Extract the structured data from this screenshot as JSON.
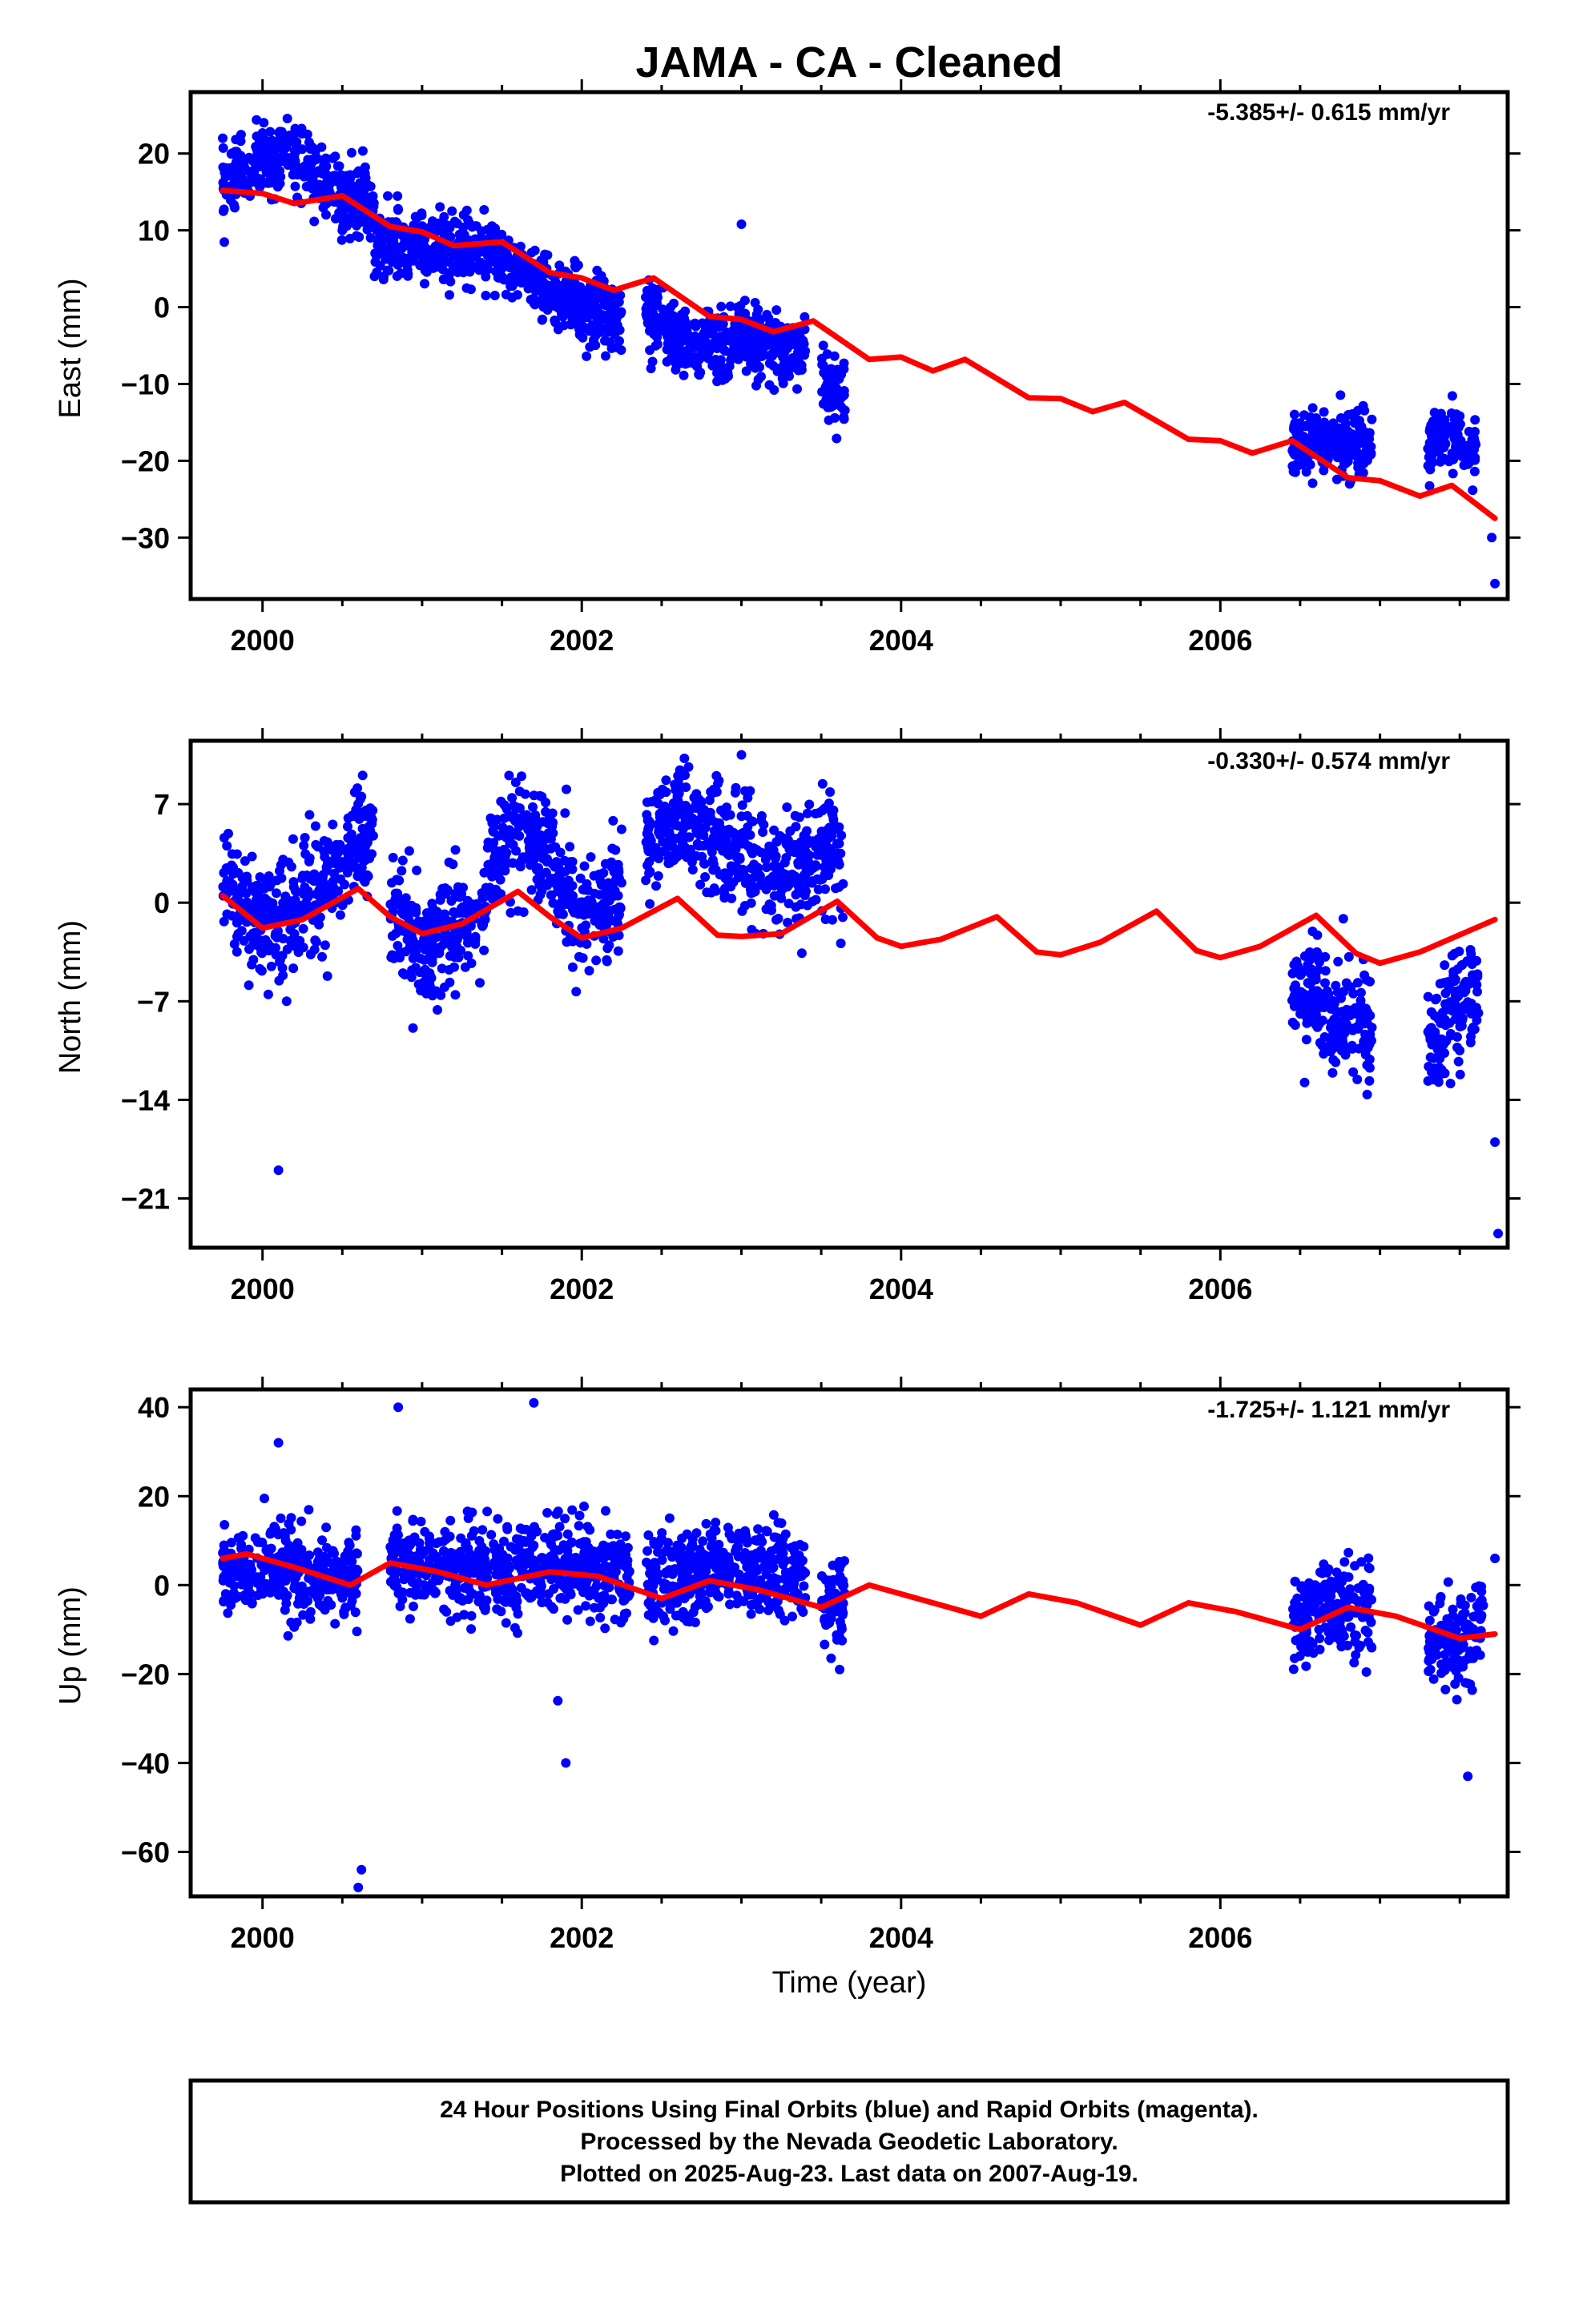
{
  "title": "JAMA  - CA - Cleaned",
  "colors": {
    "dots": "#0000ff",
    "model": "#ff0000"
  },
  "footer": {
    "lines": [
      "24 Hour Positions Using Final Orbits (blue) and Rapid Orbits (magenta).",
      "Processed by the Nevada Geodetic Laboratory.",
      "Plotted on 2025-Aug-23. Last data on 2007-Aug-19."
    ]
  },
  "chart_data": [
    {
      "type": "scatter",
      "ylabel": "East (mm)",
      "xlabel": "",
      "rate_label": "-5.385+/- 0.615 mm/yr",
      "xlim": [
        1999.55,
        2007.8
      ],
      "ylim": [
        -38,
        28
      ],
      "xticks": [
        2000,
        2002,
        2004,
        2006
      ],
      "yticks": [
        20,
        10,
        0,
        -10,
        -20,
        -30
      ],
      "ytick_labels": [
        "20",
        "10",
        "0",
        "−10",
        "−20",
        "−30"
      ],
      "series": [
        {
          "kind": "dots",
          "segments": [
            {
              "start": 1999.75,
              "end": 2000.7,
              "points": [
                [
                  1999.75,
                  16
                ],
                [
                  2000.0,
                  19
                ],
                [
                  2000.2,
                  20
                ],
                [
                  2000.5,
                  14
                ]
              ]
            },
            {
              "start": 2000.7,
              "end": 2001.5,
              "points": [
                [
                  2000.7,
                  8
                ],
                [
                  2001.0,
                  7
                ],
                [
                  2001.2,
                  8
                ],
                [
                  2001.5,
                  7
                ]
              ]
            },
            {
              "start": 2001.5,
              "end": 2002.25,
              "points": [
                [
                  2001.5,
                  6
                ],
                [
                  2001.8,
                  2
                ],
                [
                  2002.0,
                  0
                ],
                [
                  2002.25,
                  -1
                ]
              ]
            },
            {
              "start": 2002.4,
              "end": 2003.4,
              "points": [
                [
                  2002.4,
                  0
                ],
                [
                  2002.7,
                  -6
                ],
                [
                  2003.0,
                  -4
                ],
                [
                  2003.4,
                  -6
                ]
              ]
            },
            {
              "start": 2003.5,
              "end": 2003.65,
              "points": [
                [
                  2003.5,
                  -10
                ],
                [
                  2003.65,
                  -11
                ]
              ]
            },
            {
              "start": 2006.45,
              "end": 2006.95,
              "points": [
                [
                  2006.45,
                  -18
                ],
                [
                  2006.7,
                  -17
                ],
                [
                  2006.95,
                  -19
                ]
              ]
            },
            {
              "start": 2007.3,
              "end": 2007.6,
              "points": [
                [
                  2007.3,
                  -18
                ],
                [
                  2007.45,
                  -17
                ],
                [
                  2007.6,
                  -19
                ]
              ]
            }
          ],
          "outliers": [
            [
              2003.0,
              10.8
            ],
            [
              2007.7,
              -30
            ],
            [
              2007.72,
              -36
            ]
          ]
        },
        {
          "kind": "model",
          "points": [
            [
              1999.75,
              15.2
            ],
            [
              2000.0,
              14.8
            ],
            [
              2000.2,
              13.5
            ],
            [
              2000.5,
              14.5
            ],
            [
              2000.8,
              10.5
            ],
            [
              2001.0,
              9.8
            ],
            [
              2001.2,
              8.0
            ],
            [
              2001.5,
              8.5
            ],
            [
              2001.8,
              4.5
            ],
            [
              2002.0,
              3.8
            ],
            [
              2002.2,
              2.2
            ],
            [
              2002.45,
              3.8
            ],
            [
              2002.8,
              -1.2
            ],
            [
              2003.0,
              -1.6
            ],
            [
              2003.2,
              -3.2
            ],
            [
              2003.45,
              -1.8
            ],
            [
              2003.8,
              -6.8
            ],
            [
              2004.0,
              -6.5
            ],
            [
              2004.2,
              -8.3
            ],
            [
              2004.4,
              -6.8
            ],
            [
              2004.8,
              -11.8
            ],
            [
              2005.0,
              -11.9
            ],
            [
              2005.2,
              -13.6
            ],
            [
              2005.4,
              -12.4
            ],
            [
              2005.8,
              -17.2
            ],
            [
              2006.0,
              -17.4
            ],
            [
              2006.2,
              -19.0
            ],
            [
              2006.45,
              -17.4
            ],
            [
              2006.8,
              -22.2
            ],
            [
              2007.0,
              -22.6
            ],
            [
              2007.25,
              -24.6
            ],
            [
              2007.45,
              -23.2
            ],
            [
              2007.72,
              -27.5
            ]
          ]
        }
      ]
    },
    {
      "type": "scatter",
      "ylabel": "North (mm)",
      "xlabel": "",
      "rate_label": "-0.330+/- 0.574 mm/yr",
      "xlim": [
        1999.55,
        2007.8
      ],
      "ylim": [
        -24.5,
        11.5
      ],
      "xticks": [
        2000,
        2002,
        2004,
        2006
      ],
      "yticks": [
        7,
        0,
        -7,
        -14,
        -21
      ],
      "ytick_labels": [
        "7",
        "0",
        "−7",
        "−14",
        "−21"
      ],
      "series": [
        {
          "kind": "dots",
          "segments": [
            {
              "start": 1999.75,
              "end": 2000.7,
              "points": [
                [
                  1999.75,
                  2
                ],
                [
                  2000.0,
                  -2
                ],
                [
                  2000.3,
                  0
                ],
                [
                  2000.6,
                  4
                ]
              ]
            },
            {
              "start": 2000.8,
              "end": 2001.4,
              "points": [
                [
                  2000.8,
                  0
                ],
                [
                  2001.0,
                  -3
                ],
                [
                  2001.2,
                  -2
                ],
                [
                  2001.4,
                  0
                ]
              ]
            },
            {
              "start": 2001.4,
              "end": 2002.25,
              "points": [
                [
                  2001.4,
                  2
                ],
                [
                  2001.6,
                  5
                ],
                [
                  2001.8,
                  3
                ],
                [
                  2002.0,
                  -1
                ],
                [
                  2002.25,
                  1
                ]
              ]
            },
            {
              "start": 2002.4,
              "end": 2003.5,
              "points": [
                [
                  2002.4,
                  4
                ],
                [
                  2002.6,
                  6
                ],
                [
                  2002.9,
                  4
                ],
                [
                  2003.2,
                  2
                ],
                [
                  2003.5,
                  3
                ]
              ]
            },
            {
              "start": 2003.5,
              "end": 2003.65,
              "points": [
                [
                  2003.5,
                  4
                ],
                [
                  2003.65,
                  3
                ]
              ]
            },
            {
              "start": 2006.45,
              "end": 2006.95,
              "points": [
                [
                  2006.45,
                  -6
                ],
                [
                  2006.6,
                  -7
                ],
                [
                  2006.8,
                  -9
                ],
                [
                  2006.95,
                  -9
                ]
              ]
            },
            {
              "start": 2007.3,
              "end": 2007.62,
              "points": [
                [
                  2007.3,
                  -10
                ],
                [
                  2007.45,
                  -8
                ],
                [
                  2007.62,
                  -5
                ]
              ]
            }
          ],
          "outliers": [
            [
              2000.1,
              -19
            ],
            [
              2003.0,
              10.5
            ],
            [
              2007.72,
              -17
            ],
            [
              2007.74,
              -23.5
            ]
          ]
        },
        {
          "kind": "model",
          "points": [
            [
              1999.75,
              0.5
            ],
            [
              2000.0,
              -1.8
            ],
            [
              2000.25,
              -1.2
            ],
            [
              2000.6,
              1.0
            ],
            [
              2000.8,
              -1.0
            ],
            [
              2001.0,
              -2.2
            ],
            [
              2001.25,
              -1.5
            ],
            [
              2001.6,
              0.8
            ],
            [
              2001.8,
              -1.0
            ],
            [
              2002.0,
              -2.5
            ],
            [
              2002.25,
              -1.8
            ],
            [
              2002.6,
              0.3
            ],
            [
              2002.85,
              -2.3
            ],
            [
              2003.0,
              -2.4
            ],
            [
              2003.25,
              -2.2
            ],
            [
              2003.6,
              0.1
            ],
            [
              2003.85,
              -2.5
            ],
            [
              2004.0,
              -3.1
            ],
            [
              2004.25,
              -2.6
            ],
            [
              2004.6,
              -1.0
            ],
            [
              2004.85,
              -3.5
            ],
            [
              2005.0,
              -3.7
            ],
            [
              2005.25,
              -2.8
            ],
            [
              2005.6,
              -0.6
            ],
            [
              2005.85,
              -3.4
            ],
            [
              2006.0,
              -3.9
            ],
            [
              2006.25,
              -3.1
            ],
            [
              2006.6,
              -0.9
            ],
            [
              2006.85,
              -3.6
            ],
            [
              2007.0,
              -4.3
            ],
            [
              2007.25,
              -3.5
            ],
            [
              2007.72,
              -1.2
            ]
          ]
        }
      ]
    },
    {
      "type": "scatter",
      "ylabel": "Up (mm)",
      "xlabel": "Time (year)",
      "rate_label": "-1.725+/- 1.121 mm/yr",
      "xlim": [
        1999.55,
        2007.8
      ],
      "ylim": [
        -70,
        44
      ],
      "xticks": [
        2000,
        2002,
        2004,
        2006
      ],
      "yticks": [
        40,
        20,
        0,
        -20,
        -40,
        -60
      ],
      "ytick_labels": [
        "40",
        "20",
        "0",
        "−20",
        "−40",
        "−60"
      ],
      "series": [
        {
          "kind": "dots",
          "segments": [
            {
              "start": 1999.75,
              "end": 2000.6,
              "points": [
                [
                  1999.75,
                  4
                ],
                [
                  2000.0,
                  3
                ],
                [
                  2000.3,
                  2
                ],
                [
                  2000.6,
                  1
                ]
              ]
            },
            {
              "start": 2000.8,
              "end": 2002.3,
              "points": [
                [
                  2000.8,
                  5
                ],
                [
                  2001.2,
                  4
                ],
                [
                  2001.6,
                  3
                ],
                [
                  2002.0,
                  4
                ],
                [
                  2002.3,
                  2
                ]
              ]
            },
            {
              "start": 2002.4,
              "end": 2003.4,
              "points": [
                [
                  2002.4,
                  0
                ],
                [
                  2002.7,
                  2
                ],
                [
                  2003.0,
                  4
                ],
                [
                  2003.4,
                  3
                ]
              ]
            },
            {
              "start": 2003.5,
              "end": 2003.65,
              "points": [
                [
                  2003.5,
                  -2
                ],
                [
                  2003.65,
                  -5
                ]
              ]
            },
            {
              "start": 2006.45,
              "end": 2006.95,
              "points": [
                [
                  2006.45,
                  -9
                ],
                [
                  2006.7,
                  -5
                ],
                [
                  2006.95,
                  -5
                ]
              ]
            },
            {
              "start": 2007.3,
              "end": 2007.65,
              "points": [
                [
                  2007.3,
                  -12
                ],
                [
                  2007.5,
                  -14
                ],
                [
                  2007.65,
                  -10
                ]
              ]
            }
          ],
          "outliers": [
            [
              2000.6,
              -68
            ],
            [
              2000.62,
              -64
            ],
            [
              2000.85,
              40
            ],
            [
              2001.7,
              41
            ],
            [
              2001.9,
              -40
            ],
            [
              2001.85,
              -26
            ],
            [
              2000.1,
              32
            ],
            [
              2007.55,
              -43
            ],
            [
              2007.72,
              6
            ]
          ]
        },
        {
          "kind": "model",
          "points": [
            [
              1999.75,
              6
            ],
            [
              1999.9,
              7
            ],
            [
              2000.2,
              4
            ],
            [
              2000.55,
              0
            ],
            [
              2000.8,
              5
            ],
            [
              2001.1,
              3
            ],
            [
              2001.4,
              0
            ],
            [
              2001.8,
              3
            ],
            [
              2002.1,
              2
            ],
            [
              2002.5,
              -3
            ],
            [
              2002.8,
              1
            ],
            [
              2003.1,
              -1
            ],
            [
              2003.5,
              -5
            ],
            [
              2003.8,
              0
            ],
            [
              2004.1,
              -3
            ],
            [
              2004.5,
              -7
            ],
            [
              2004.8,
              -2
            ],
            [
              2005.1,
              -4
            ],
            [
              2005.5,
              -9
            ],
            [
              2005.8,
              -4
            ],
            [
              2006.1,
              -6
            ],
            [
              2006.5,
              -10
            ],
            [
              2006.8,
              -5
            ],
            [
              2007.1,
              -7
            ],
            [
              2007.5,
              -12
            ],
            [
              2007.72,
              -11
            ]
          ]
        }
      ]
    }
  ]
}
